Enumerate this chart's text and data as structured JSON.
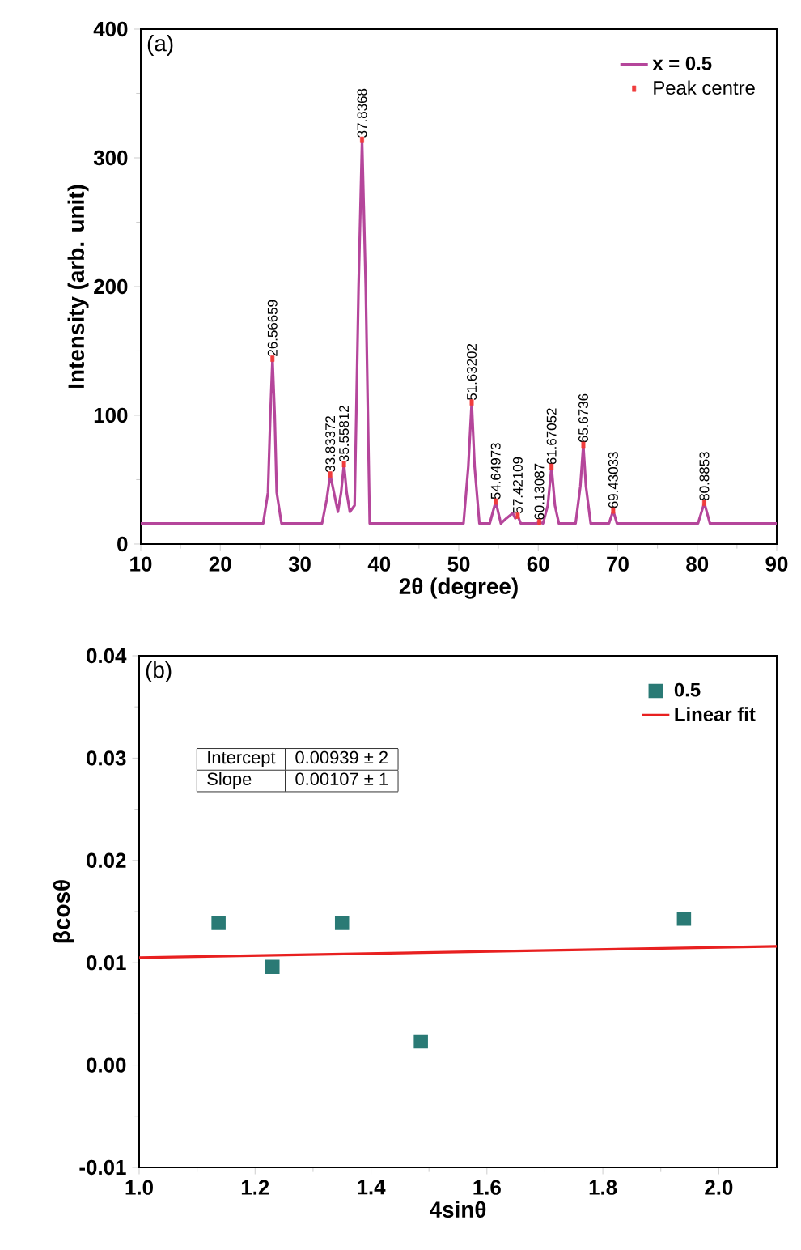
{
  "chart_data": [
    {
      "type": "line",
      "xlabel": "2θ (degree)",
      "ylabel": "Intensity (arb. unit)",
      "xlim": [
        10,
        90
      ],
      "ylim": [
        0,
        400
      ],
      "xticks": [
        10,
        20,
        30,
        40,
        50,
        60,
        70,
        80,
        90
      ],
      "yticks": [
        0,
        100,
        200,
        300,
        400
      ],
      "legend": "top right",
      "annotations": [
        "(a)",
        {
          "text": "26.56659",
          "x": 26.56659,
          "y": 144
        },
        {
          "text": "33.83372",
          "x": 33.83372,
          "y": 54
        },
        {
          "text": "35.55812",
          "x": 35.55812,
          "y": 62
        },
        {
          "text": "37.8368",
          "x": 37.8368,
          "y": 314
        },
        {
          "text": "51.63202",
          "x": 51.63202,
          "y": 110
        },
        {
          "text": "54.64973",
          "x": 54.64973,
          "y": 33
        },
        {
          "text": "57.42109",
          "x": 57.42109,
          "y": 22
        },
        {
          "text": "60.13087",
          "x": 60.13087,
          "y": 17
        },
        {
          "text": "61.67052",
          "x": 61.67052,
          "y": 60
        },
        {
          "text": "65.6736",
          "x": 65.6736,
          "y": 77
        },
        {
          "text": "69.43033",
          "x": 69.43033,
          "y": 26
        },
        {
          "text": "80.8853",
          "x": 80.8853,
          "y": 32
        }
      ],
      "series": [
        {
          "name": "x = 0.5",
          "color": "#b5469b",
          "x": [
            10,
            25.4,
            26.0,
            26.3,
            26.57,
            26.85,
            27.1,
            27.7,
            32.8,
            33.4,
            33.83,
            34.3,
            34.8,
            35.2,
            35.56,
            35.9,
            36.3,
            36.9,
            37.4,
            37.84,
            38.3,
            38.8,
            50.6,
            51.2,
            51.63,
            52.0,
            52.6,
            53.9,
            54.65,
            55.3,
            56.0,
            56.8,
            57.1,
            57.42,
            57.8,
            59.8,
            60.13,
            60.6,
            61.2,
            61.67,
            62.1,
            62.6,
            64.7,
            65.3,
            65.67,
            66.0,
            66.6,
            68.9,
            69.43,
            69.9,
            80.1,
            80.89,
            81.6,
            90
          ],
          "values": [
            16,
            16,
            40,
            100,
            144,
            100,
            40,
            16,
            16,
            35,
            54,
            40,
            25,
            40,
            62,
            40,
            25,
            30,
            200,
            314,
            200,
            16,
            16,
            60,
            110,
            60,
            16,
            16,
            33,
            16,
            20,
            24,
            20,
            22,
            16,
            16,
            17,
            16,
            30,
            60,
            30,
            16,
            16,
            45,
            77,
            45,
            16,
            16,
            26,
            16,
            16,
            32,
            16,
            16
          ]
        },
        {
          "name": "Peak centre",
          "type": "scatter",
          "color": "#f03c3c",
          "x": [
            26.56659,
            33.83372,
            35.55812,
            37.8368,
            51.63202,
            54.64973,
            57.42109,
            60.13087,
            61.67052,
            65.6736,
            69.43033,
            80.8853
          ],
          "values": [
            144,
            54,
            62,
            314,
            110,
            33,
            22,
            17,
            60,
            77,
            26,
            32
          ]
        }
      ]
    },
    {
      "type": "scatter",
      "xlabel": "4sinθ",
      "ylabel": "βcosθ",
      "xlim": [
        1.0,
        2.1
      ],
      "ylim": [
        -0.01,
        0.04
      ],
      "xticks": [
        {
          "value": 1.0,
          "label": "1.0"
        },
        {
          "value": 1.2,
          "label": "1.2"
        },
        {
          "value": 1.4,
          "label": "1.4"
        },
        {
          "value": 1.6,
          "label": "1.6"
        },
        {
          "value": 1.8,
          "label": "1.8"
        },
        {
          "value": 2.0,
          "label": "2.0"
        }
      ],
      "yticks": [
        {
          "value": -0.01,
          "label": "-0.01"
        },
        {
          "value": 0,
          "label": "0.00"
        },
        {
          "value": 0.01,
          "label": "0.01"
        },
        {
          "value": 0.02,
          "label": "0.02"
        },
        {
          "value": 0.03,
          "label": "0.03"
        },
        {
          "value": 0.04,
          "label": "0.04"
        }
      ],
      "legend": "top right",
      "annotations": [
        "(b)",
        "Intercept",
        "0.00939 ± 2",
        "Slope",
        "0.00107 ± 1"
      ],
      "series": [
        {
          "name": "0.5",
          "marker": "square",
          "color": "#2a7a75",
          "x": [
            1.137,
            1.23,
            1.35,
            1.486,
            1.94
          ],
          "values": [
            0.0139,
            0.0096,
            0.0139,
            0.0023,
            0.0143
          ]
        },
        {
          "name": "Linear fit",
          "type": "line",
          "color": "#e82020",
          "x": [
            1.0,
            2.1
          ],
          "values": [
            0.0105,
            0.0116
          ]
        }
      ]
    }
  ]
}
